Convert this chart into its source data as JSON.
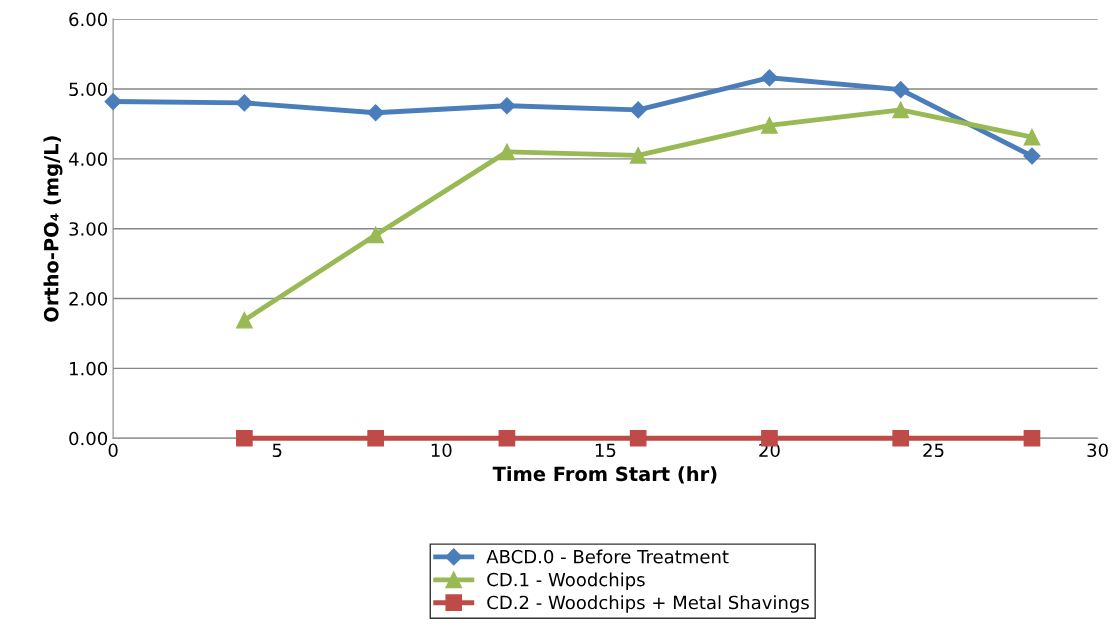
{
  "chart_data": {
    "type": "line",
    "xlabel": "Time From Start (hr)",
    "ylabel": "Ortho-PO₄ (mg/L)",
    "xlim": [
      0,
      30
    ],
    "xticks": [
      0,
      5,
      10,
      15,
      20,
      25,
      30
    ],
    "ylim": [
      0,
      6
    ],
    "yticks": [
      {
        "value": 0,
        "label": "0.00"
      },
      {
        "value": 1,
        "label": "1.00"
      },
      {
        "value": 2,
        "label": "2.00"
      },
      {
        "value": 3,
        "label": "3.00"
      },
      {
        "value": 4,
        "label": "4.00"
      },
      {
        "value": 5,
        "label": "5.00"
      },
      {
        "value": 6,
        "label": "6.00"
      }
    ],
    "grid": "y",
    "legend": "bottom",
    "series": [
      {
        "name": "ABCD.0 - Before Treatment",
        "color": "#4a7ebb",
        "marker": "diamond",
        "x": [
          0,
          4,
          8,
          12,
          16,
          20,
          24,
          28
        ],
        "values": [
          4.82,
          4.8,
          4.66,
          4.76,
          4.7,
          5.16,
          4.99,
          4.04
        ]
      },
      {
        "name": "CD.1 - Woodchips",
        "color": "#98b954",
        "marker": "triangle",
        "x": [
          4,
          8,
          12,
          16,
          20,
          24,
          28
        ],
        "values": [
          1.69,
          2.91,
          4.1,
          4.05,
          4.48,
          4.7,
          4.31
        ]
      },
      {
        "name": "CD.2 - Woodchips + Metal Shavings",
        "color": "#be4b48",
        "marker": "square",
        "x": [
          4,
          8,
          12,
          16,
          20,
          24,
          28
        ],
        "values": [
          0,
          0,
          0,
          0,
          0,
          0,
          0
        ]
      }
    ]
  }
}
